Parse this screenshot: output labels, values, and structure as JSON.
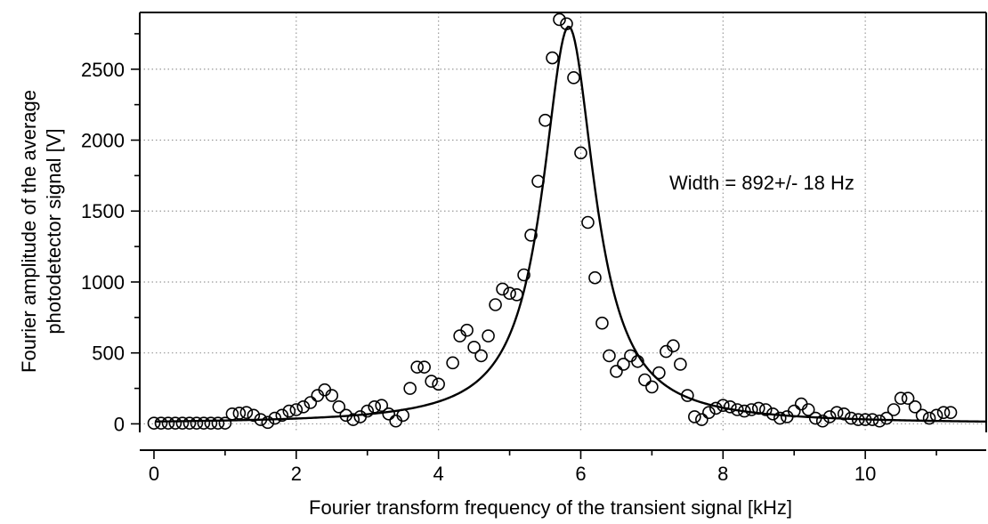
{
  "chart_data": {
    "type": "scatter",
    "title": "",
    "xlabel": "Fourier transform frequency of the transient signal [kHz]",
    "ylabel_lines": [
      "Fourier amplitude of the average",
      "photodetector signal [V]"
    ],
    "xlim": [
      -0.2,
      11.7
    ],
    "ylim": [
      -60,
      2900
    ],
    "x_ticks": [
      0,
      2,
      4,
      6,
      8,
      10
    ],
    "y_ticks": [
      0,
      500,
      1000,
      1500,
      2000,
      2500
    ],
    "x_grid": [
      2,
      4,
      6,
      8,
      10
    ],
    "y_grid": [
      0,
      500,
      1000,
      1500,
      2000,
      2500
    ],
    "grid": true,
    "grid_style": "dotted",
    "legend": "none",
    "annotation": "Width = 892+/- 18 Hz",
    "colors": {
      "marker": "#000000",
      "fit_line": "#000000",
      "grid": "#9a9a9a",
      "background": "#ffffff"
    },
    "series": [
      {
        "marker": "open-circle",
        "points": [
          [
            0.0,
            5
          ],
          [
            0.1,
            5
          ],
          [
            0.2,
            5
          ],
          [
            0.3,
            5
          ],
          [
            0.4,
            5
          ],
          [
            0.5,
            5
          ],
          [
            0.6,
            5
          ],
          [
            0.7,
            5
          ],
          [
            0.8,
            5
          ],
          [
            0.9,
            5
          ],
          [
            1.0,
            5
          ],
          [
            1.1,
            70
          ],
          [
            1.2,
            75
          ],
          [
            1.3,
            80
          ],
          [
            1.4,
            60
          ],
          [
            1.5,
            30
          ],
          [
            1.6,
            10
          ],
          [
            1.7,
            40
          ],
          [
            1.8,
            60
          ],
          [
            1.9,
            90
          ],
          [
            2.0,
            100
          ],
          [
            2.1,
            120
          ],
          [
            2.2,
            150
          ],
          [
            2.3,
            200
          ],
          [
            2.4,
            240
          ],
          [
            2.5,
            200
          ],
          [
            2.6,
            120
          ],
          [
            2.7,
            60
          ],
          [
            2.8,
            30
          ],
          [
            2.9,
            50
          ],
          [
            3.0,
            90
          ],
          [
            3.1,
            120
          ],
          [
            3.2,
            130
          ],
          [
            3.3,
            70
          ],
          [
            3.4,
            20
          ],
          [
            3.5,
            60
          ],
          [
            3.6,
            250
          ],
          [
            3.7,
            400
          ],
          [
            3.8,
            400
          ],
          [
            3.9,
            300
          ],
          [
            4.0,
            280
          ],
          [
            4.2,
            430
          ],
          [
            4.3,
            620
          ],
          [
            4.4,
            660
          ],
          [
            4.5,
            540
          ],
          [
            4.6,
            480
          ],
          [
            4.7,
            620
          ],
          [
            4.8,
            840
          ],
          [
            4.9,
            950
          ],
          [
            5.0,
            920
          ],
          [
            5.1,
            910
          ],
          [
            5.2,
            1050
          ],
          [
            5.3,
            1330
          ],
          [
            5.4,
            1710
          ],
          [
            5.5,
            2140
          ],
          [
            5.6,
            2580
          ],
          [
            5.7,
            2850
          ],
          [
            5.8,
            2820
          ],
          [
            5.9,
            2440
          ],
          [
            6.0,
            1910
          ],
          [
            6.1,
            1420
          ],
          [
            6.2,
            1030
          ],
          [
            6.3,
            710
          ],
          [
            6.4,
            480
          ],
          [
            6.5,
            370
          ],
          [
            6.6,
            420
          ],
          [
            6.7,
            480
          ],
          [
            6.8,
            440
          ],
          [
            6.9,
            310
          ],
          [
            7.0,
            260
          ],
          [
            7.1,
            360
          ],
          [
            7.2,
            510
          ],
          [
            7.3,
            550
          ],
          [
            7.4,
            420
          ],
          [
            7.5,
            200
          ],
          [
            7.6,
            50
          ],
          [
            7.7,
            30
          ],
          [
            7.8,
            80
          ],
          [
            7.9,
            110
          ],
          [
            8.0,
            130
          ],
          [
            8.1,
            120
          ],
          [
            8.2,
            100
          ],
          [
            8.3,
            90
          ],
          [
            8.4,
            100
          ],
          [
            8.5,
            110
          ],
          [
            8.6,
            100
          ],
          [
            8.7,
            70
          ],
          [
            8.8,
            40
          ],
          [
            8.9,
            50
          ],
          [
            9.0,
            90
          ],
          [
            9.1,
            140
          ],
          [
            9.2,
            100
          ],
          [
            9.3,
            40
          ],
          [
            9.4,
            20
          ],
          [
            9.5,
            50
          ],
          [
            9.6,
            80
          ],
          [
            9.7,
            70
          ],
          [
            9.8,
            40
          ],
          [
            9.9,
            30
          ],
          [
            10.0,
            30
          ],
          [
            10.1,
            30
          ],
          [
            10.2,
            20
          ],
          [
            10.3,
            40
          ],
          [
            10.4,
            100
          ],
          [
            10.5,
            180
          ],
          [
            10.6,
            180
          ],
          [
            10.7,
            120
          ],
          [
            10.8,
            60
          ],
          [
            10.9,
            40
          ],
          [
            11.0,
            60
          ],
          [
            11.1,
            80
          ],
          [
            11.2,
            80
          ]
        ]
      }
    ],
    "fit": {
      "type": "lorentzian",
      "center": 5.83,
      "half_width": 0.446,
      "peak": 2800,
      "baseline": 0
    }
  }
}
